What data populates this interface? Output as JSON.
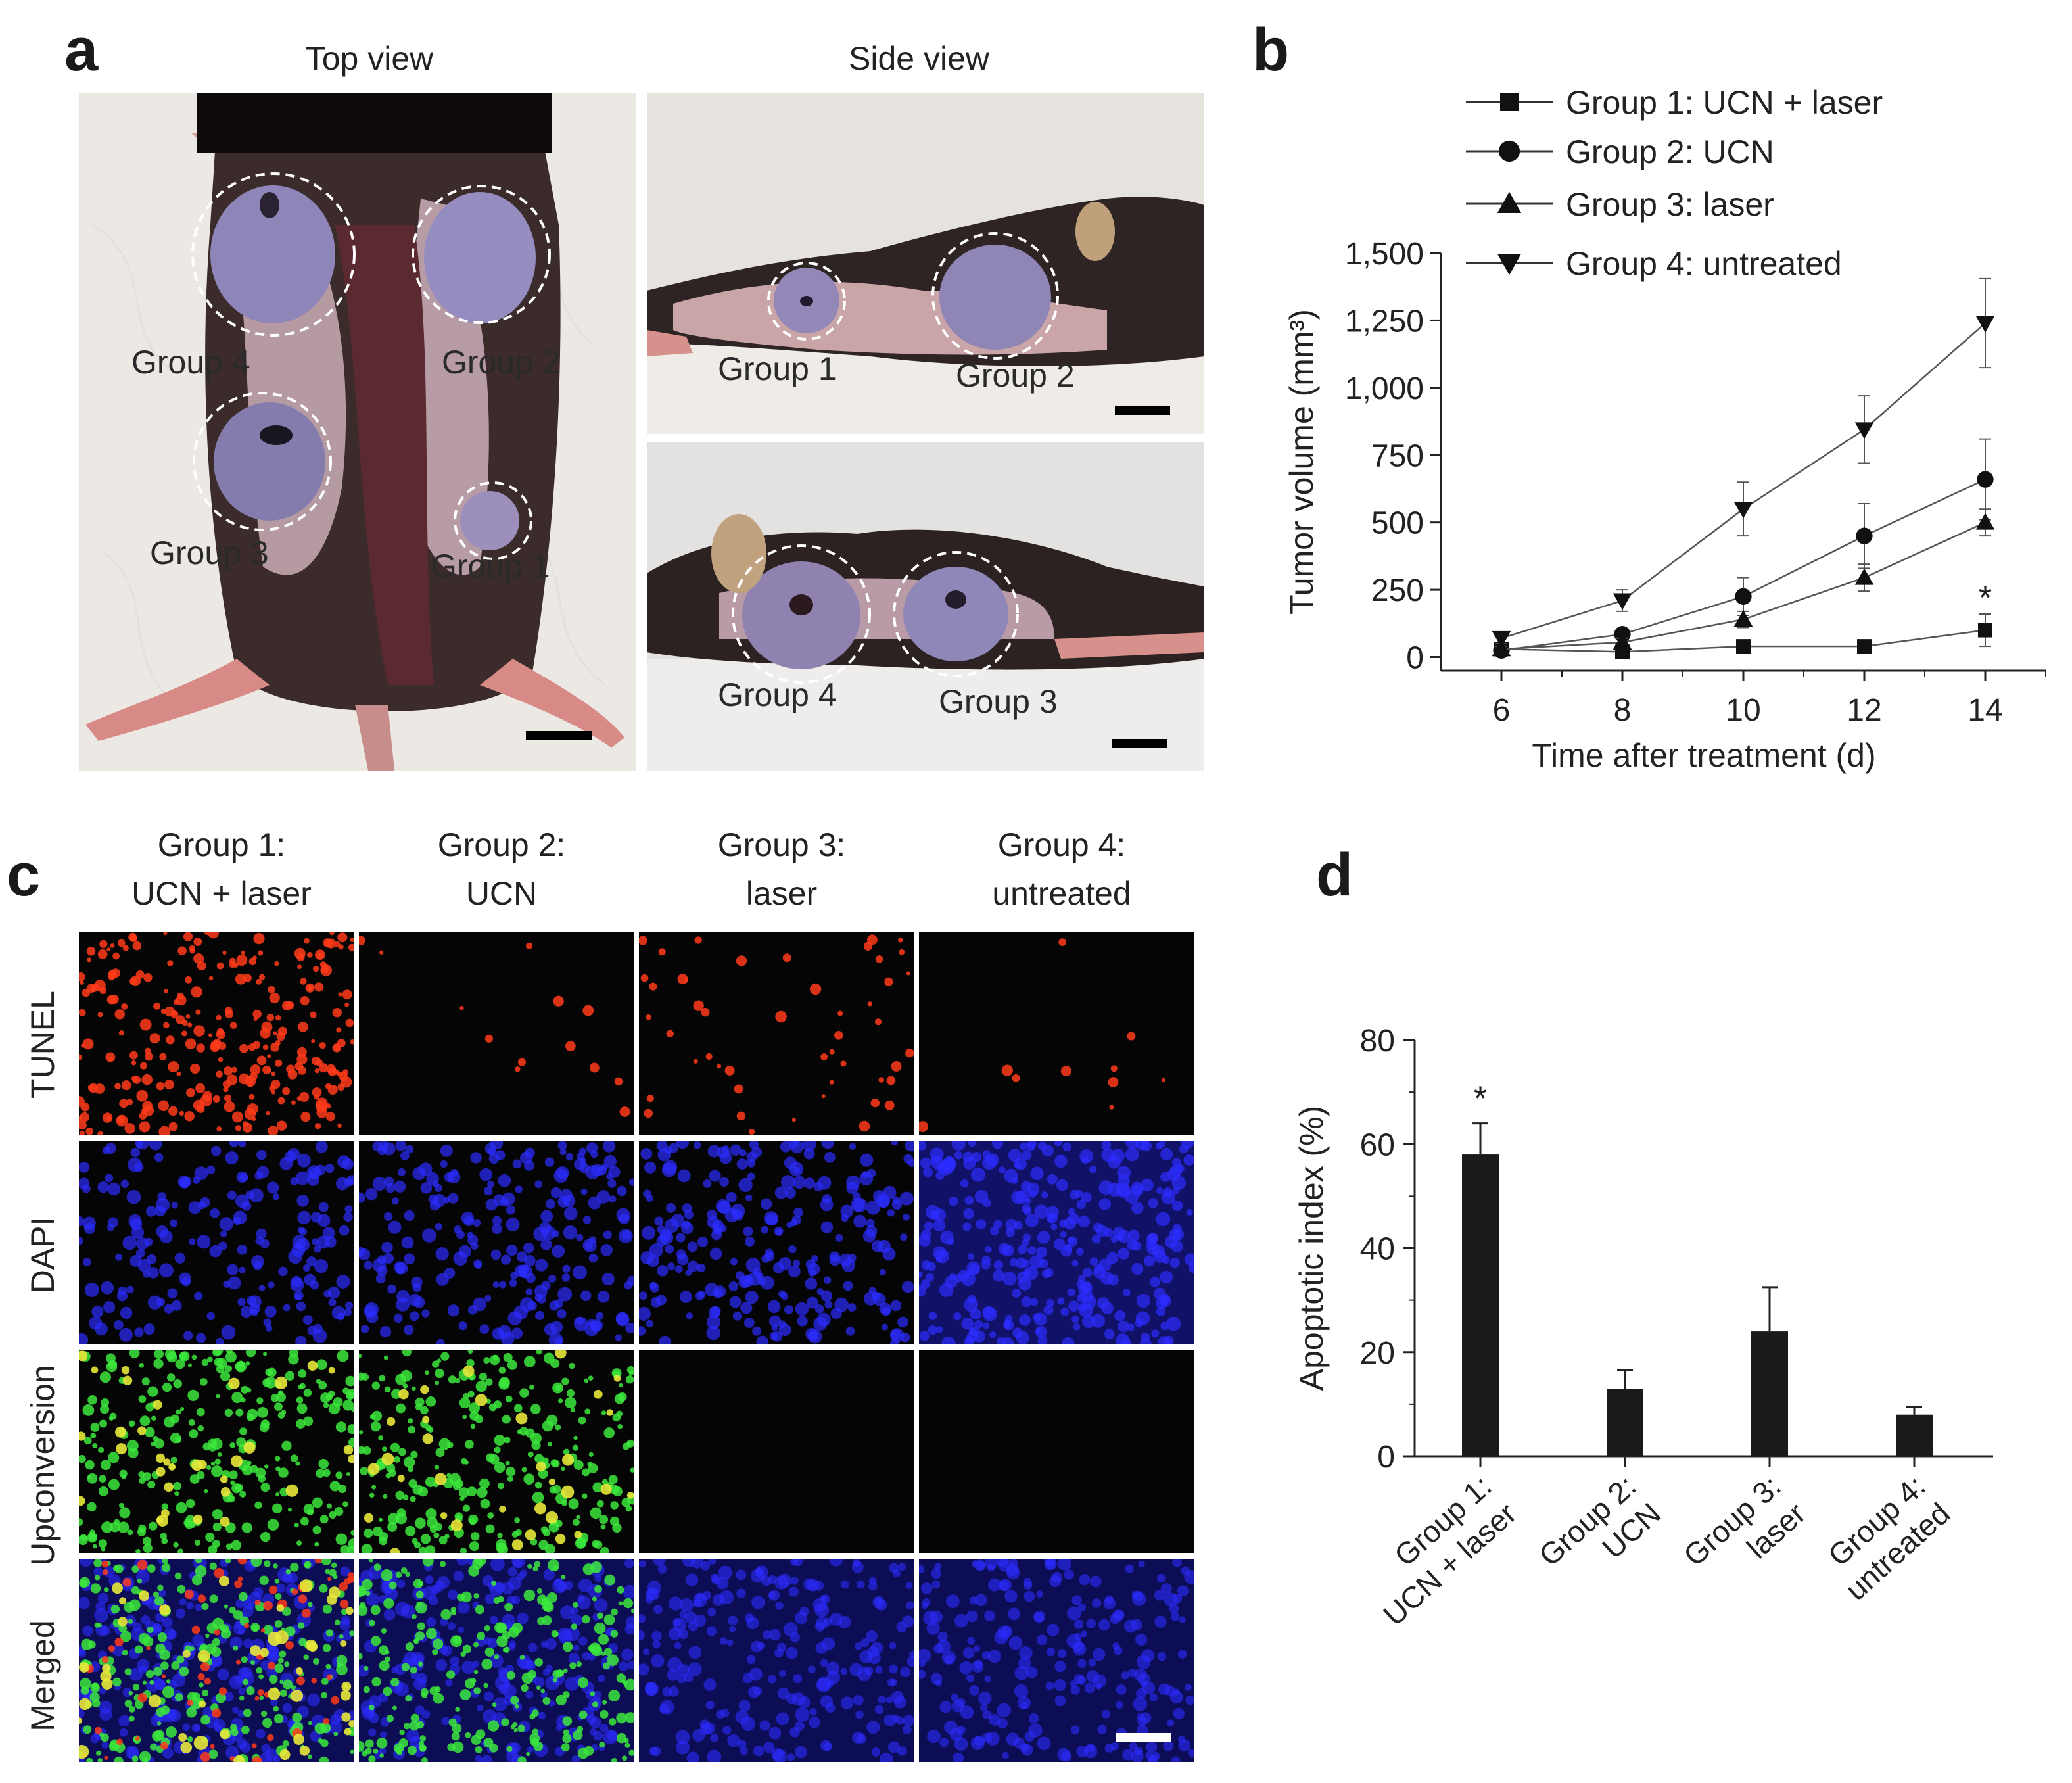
{
  "panels": {
    "a": {
      "letter": "a",
      "top_view_title": "Top view",
      "side_view_title": "Side view",
      "top_labels": [
        "Group 4",
        "Group 2",
        "Group 3",
        "Group 1"
      ],
      "side_top_labels": [
        "Group 1",
        "Group 2"
      ],
      "side_bottom_labels": [
        "Group 4",
        "Group 3"
      ]
    },
    "b": {
      "letter": "b",
      "legend": [
        "Group 1: UCN + laser",
        "Group 2: UCN",
        "Group 3: laser",
        "Group 4: untreated"
      ],
      "significance": "*"
    },
    "c": {
      "letter": "c",
      "columns": [
        {
          "line1": "Group 1:",
          "line2": "UCN + laser"
        },
        {
          "line1": "Group 2:",
          "line2": "UCN"
        },
        {
          "line1": "Group 3:",
          "line2": "laser"
        },
        {
          "line1": "Group 4:",
          "line2": "untreated"
        }
      ],
      "rows": [
        "TUNEL",
        "DAPI",
        "Upconversion",
        "Merged"
      ]
    },
    "d": {
      "letter": "d",
      "significance": "*"
    }
  },
  "chart_data": [
    {
      "panel": "b",
      "type": "line",
      "xlabel": "Time after treatment (d)",
      "ylabel": "Tumor volume (mm³)",
      "x": [
        6,
        8,
        10,
        12,
        14
      ],
      "xlim": [
        5,
        15
      ],
      "ylim": [
        -50,
        1500
      ],
      "yticks": [
        0,
        250,
        500,
        750,
        1000,
        1250,
        1500
      ],
      "ytick_labels": [
        "0",
        "250",
        "500",
        "750",
        "1,000",
        "1,250",
        "1,500"
      ],
      "xticks": [
        6,
        8,
        10,
        12,
        14
      ],
      "series": [
        {
          "name": "Group 1: UCN + laser",
          "marker": "square",
          "values": [
            30,
            20,
            40,
            40,
            100
          ],
          "errors": [
            10,
            15,
            15,
            15,
            60
          ]
        },
        {
          "name": "Group 2: UCN",
          "marker": "circle",
          "values": [
            25,
            85,
            225,
            450,
            660
          ],
          "errors": [
            10,
            20,
            70,
            120,
            150
          ]
        },
        {
          "name": "Group 3: laser",
          "marker": "triangle-up",
          "values": [
            30,
            55,
            140,
            295,
            500
          ],
          "errors": [
            10,
            15,
            30,
            50,
            50
          ]
        },
        {
          "name": "Group 4: untreated",
          "marker": "triangle-down",
          "values": [
            70,
            210,
            550,
            845,
            1240
          ],
          "errors": [
            20,
            40,
            100,
            125,
            165
          ]
        }
      ],
      "annotation": {
        "text": "*",
        "x": 14,
        "y": 250
      },
      "legend_position": "top"
    },
    {
      "panel": "d",
      "type": "bar",
      "categories": [
        {
          "line1": "Group 1:",
          "line2": "UCN + laser"
        },
        {
          "line1": "Group 2:",
          "line2": "UCN"
        },
        {
          "line1": "Group 3:",
          "line2": "laser"
        },
        {
          "line1": "Group 4:",
          "line2": "untreated"
        }
      ],
      "values": [
        58,
        13,
        24,
        8
      ],
      "errors": [
        6,
        3.5,
        8.5,
        1.5
      ],
      "ylabel": "Apoptotic index (%)",
      "ylim": [
        0,
        80
      ],
      "yticks": [
        0,
        20,
        40,
        60,
        80
      ],
      "annotation": {
        "text": "*",
        "category_index": 0
      },
      "bar_color": "#1a1a1a"
    }
  ],
  "colors": {
    "tunel": "#ff3b1a",
    "dapi": "#2c2cff",
    "upconversion": "#3ce83c",
    "merged_overlap": "#e8e83a"
  }
}
